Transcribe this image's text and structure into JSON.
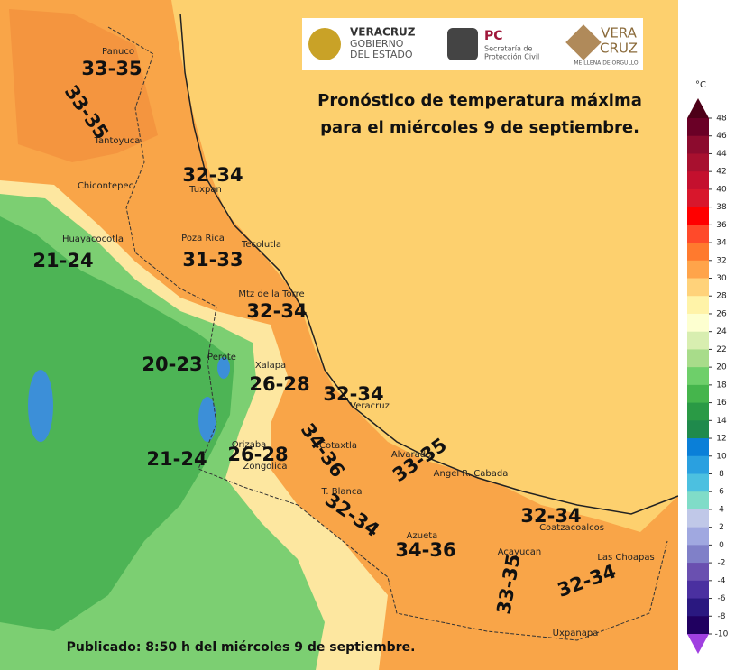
{
  "title": [
    "Pronóstico de temperatura máxima",
    "para el miércoles 9 de septiembre."
  ],
  "published": "Publicado: 8:50 h del miércoles 9 de septiembre.",
  "logos": [
    {
      "lines": [
        "VERACRUZ",
        "GOBIERNO",
        "DEL ESTADO"
      ]
    },
    {
      "lines": [
        "PC",
        "Secretaría de",
        "Protección Civil"
      ]
    },
    {
      "lines": [
        "VERA",
        "CRUZ",
        "ME LLENA DE ORGULLO"
      ]
    }
  ],
  "colorbar": {
    "unit": "°C",
    "ticks": [
      48,
      46,
      44,
      42,
      40,
      38,
      36,
      34,
      32,
      30,
      28,
      26,
      24,
      22,
      20,
      18,
      16,
      14,
      12,
      10,
      8,
      6,
      4,
      2,
      0,
      -2,
      -4,
      -6,
      -8,
      -10
    ],
    "colors": [
      "#4d0018",
      "#6a0026",
      "#8c0b2e",
      "#a8102f",
      "#c4102e",
      "#d8172c",
      "#ff0000",
      "#ff4a2a",
      "#ff7a2e",
      "#ffa44a",
      "#ffd27a",
      "#fff3a8",
      "#fdffd0",
      "#d8eeb0",
      "#a8dc8a",
      "#6ecf6a",
      "#45b54c",
      "#2a9a45",
      "#1f8a4c",
      "#0a7fd8",
      "#2aa0e0",
      "#4cc0e0",
      "#80dcc8",
      "#c0c8e8",
      "#a0a8e0",
      "#8080c8",
      "#6a50b0",
      "#4a30a0",
      "#2a1880",
      "#200060",
      "#6020a0",
      "#a040e0"
    ]
  },
  "cities": [
    "Panuco",
    "Tantoyuca",
    "Chicontepec",
    "Tuxpan",
    "Huayacocotla",
    "Poza Rica",
    "Tecolutla",
    "Mtz de la Torre",
    "Perote",
    "Xalapa",
    "Veracruz",
    "Cotaxtla",
    "Alvarado",
    "Orizaba",
    "Zongolica",
    "Angel R. Cabada",
    "T. Blanca",
    "Azueta",
    "Coatzacoalcos",
    "Acayucan",
    "Las Choapas",
    "Uxpanapa"
  ],
  "ranges": [
    "33-35",
    "33-35",
    "32-34",
    "21-24",
    "31-33",
    "32-34",
    "20-23",
    "26-28",
    "32-34",
    "34-36",
    "33-35",
    "21-24",
    "26-28",
    "32-34",
    "32-34",
    "34-36",
    "33-35",
    "32-34"
  ]
}
